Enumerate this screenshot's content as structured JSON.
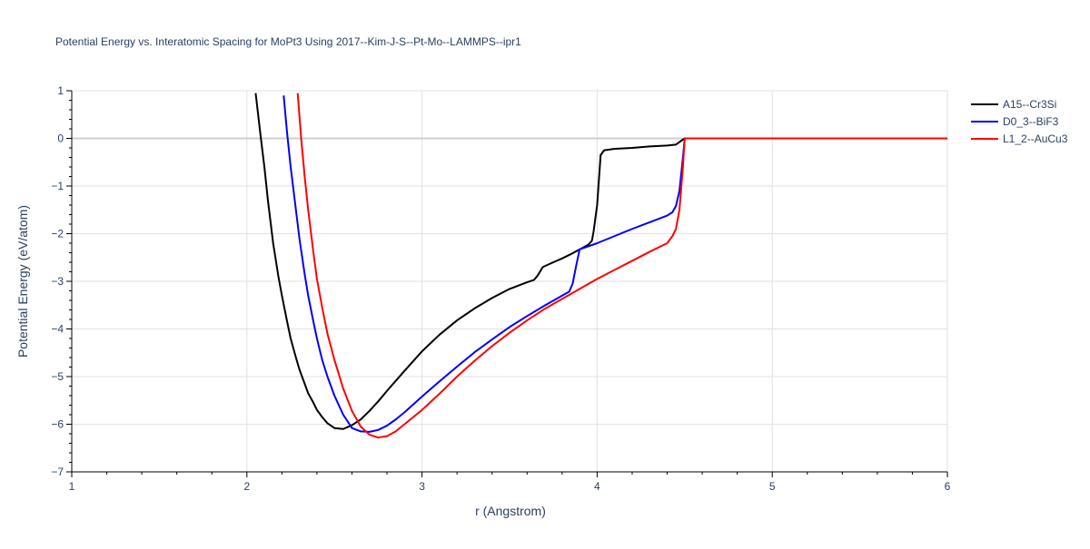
{
  "chart_data": {
    "type": "line",
    "title": "Potential Energy vs. Interatomic Spacing for MoPt3 Using 2017--Kim-J-S--Pt-Mo--LAMMPS--ipr1",
    "xlabel": "r (Angstrom)",
    "ylabel": "Potential Energy (eV/atom)",
    "xlim": [
      1,
      6
    ],
    "ylim": [
      -7,
      1
    ],
    "xticks": [
      1,
      2,
      3,
      4,
      5,
      6
    ],
    "xtick_labels": [
      "1",
      "2",
      "3",
      "4",
      "5",
      "6"
    ],
    "yticks": [
      -7,
      -6,
      -5,
      -4,
      -3,
      -2,
      -1,
      0,
      1
    ],
    "ytick_labels": [
      "−7",
      "−6",
      "−5",
      "−4",
      "−3",
      "−2",
      "−1",
      "0",
      "1"
    ],
    "grid": true,
    "legend_position": "top-right",
    "series": [
      {
        "name": "A15--Cr3Si",
        "color": "#000000",
        "x": [
          2.05,
          2.08,
          2.1,
          2.12,
          2.15,
          2.18,
          2.2,
          2.23,
          2.25,
          2.28,
          2.3,
          2.33,
          2.35,
          2.38,
          2.4,
          2.43,
          2.46,
          2.5,
          2.55,
          2.6,
          2.65,
          2.7,
          2.75,
          2.8,
          2.9,
          3.0,
          3.1,
          3.2,
          3.3,
          3.4,
          3.5,
          3.6,
          3.64,
          3.66,
          3.69,
          3.75,
          3.8,
          3.85,
          3.9,
          3.95,
          3.97,
          3.98,
          4.0,
          4.02,
          4.04,
          4.1,
          4.2,
          4.3,
          4.4,
          4.45,
          4.48,
          4.5,
          4.6,
          5.0,
          5.5,
          6.0
        ],
        "y": [
          0.95,
          0.0,
          -0.6,
          -1.3,
          -2.2,
          -2.9,
          -3.3,
          -3.85,
          -4.2,
          -4.6,
          -4.85,
          -5.15,
          -5.35,
          -5.55,
          -5.7,
          -5.85,
          -5.98,
          -6.08,
          -6.1,
          -6.02,
          -5.9,
          -5.72,
          -5.52,
          -5.3,
          -4.88,
          -4.47,
          -4.12,
          -3.82,
          -3.57,
          -3.35,
          -3.16,
          -3.02,
          -2.97,
          -2.88,
          -2.7,
          -2.6,
          -2.52,
          -2.43,
          -2.33,
          -2.23,
          -2.15,
          -1.95,
          -1.4,
          -0.35,
          -0.25,
          -0.22,
          -0.2,
          -0.17,
          -0.15,
          -0.13,
          -0.05,
          0.0,
          0.0,
          0.0,
          0.0,
          0.0
        ]
      },
      {
        "name": "D0_3--BiF3",
        "color": "#0000ff",
        "x": [
          2.21,
          2.23,
          2.25,
          2.28,
          2.3,
          2.33,
          2.35,
          2.38,
          2.4,
          2.43,
          2.46,
          2.5,
          2.55,
          2.6,
          2.65,
          2.7,
          2.75,
          2.8,
          2.85,
          2.9,
          3.0,
          3.1,
          3.2,
          3.3,
          3.4,
          3.5,
          3.6,
          3.7,
          3.8,
          3.84,
          3.86,
          3.88,
          3.9,
          4.0,
          4.1,
          4.2,
          4.3,
          4.4,
          4.43,
          4.45,
          4.47,
          4.49,
          4.5,
          4.6,
          5.0,
          5.5,
          6.0
        ],
        "y": [
          0.9,
          0.1,
          -0.6,
          -1.5,
          -2.1,
          -2.85,
          -3.3,
          -3.85,
          -4.2,
          -4.65,
          -5.0,
          -5.4,
          -5.8,
          -6.08,
          -6.15,
          -6.16,
          -6.12,
          -6.03,
          -5.9,
          -5.75,
          -5.42,
          -5.1,
          -4.79,
          -4.49,
          -4.22,
          -3.96,
          -3.73,
          -3.51,
          -3.3,
          -3.22,
          -3.05,
          -2.68,
          -2.33,
          -2.2,
          -2.05,
          -1.9,
          -1.76,
          -1.62,
          -1.55,
          -1.42,
          -1.1,
          -0.4,
          0.0,
          0.0,
          0.0,
          0.0,
          0.0
        ]
      },
      {
        "name": "L1_2--AuCu3",
        "color": "#ff0000",
        "x": [
          2.29,
          2.31,
          2.33,
          2.35,
          2.38,
          2.4,
          2.43,
          2.46,
          2.5,
          2.55,
          2.6,
          2.65,
          2.7,
          2.75,
          2.8,
          2.85,
          2.9,
          2.95,
          3.0,
          3.1,
          3.2,
          3.3,
          3.4,
          3.5,
          3.6,
          3.7,
          3.8,
          3.9,
          4.0,
          4.1,
          4.2,
          4.3,
          4.4,
          4.43,
          4.45,
          4.47,
          4.49,
          4.5,
          4.6,
          5.0,
          5.5,
          6.0
        ],
        "y": [
          0.95,
          0.0,
          -0.8,
          -1.5,
          -2.4,
          -2.95,
          -3.55,
          -4.1,
          -4.65,
          -5.25,
          -5.72,
          -6.05,
          -6.22,
          -6.28,
          -6.25,
          -6.15,
          -6.0,
          -5.85,
          -5.7,
          -5.36,
          -5.0,
          -4.67,
          -4.36,
          -4.08,
          -3.82,
          -3.58,
          -3.37,
          -3.16,
          -2.95,
          -2.76,
          -2.57,
          -2.38,
          -2.2,
          -2.05,
          -1.9,
          -1.5,
          -0.6,
          0.0,
          0.0,
          0.0,
          0.0,
          0.0
        ]
      }
    ]
  }
}
